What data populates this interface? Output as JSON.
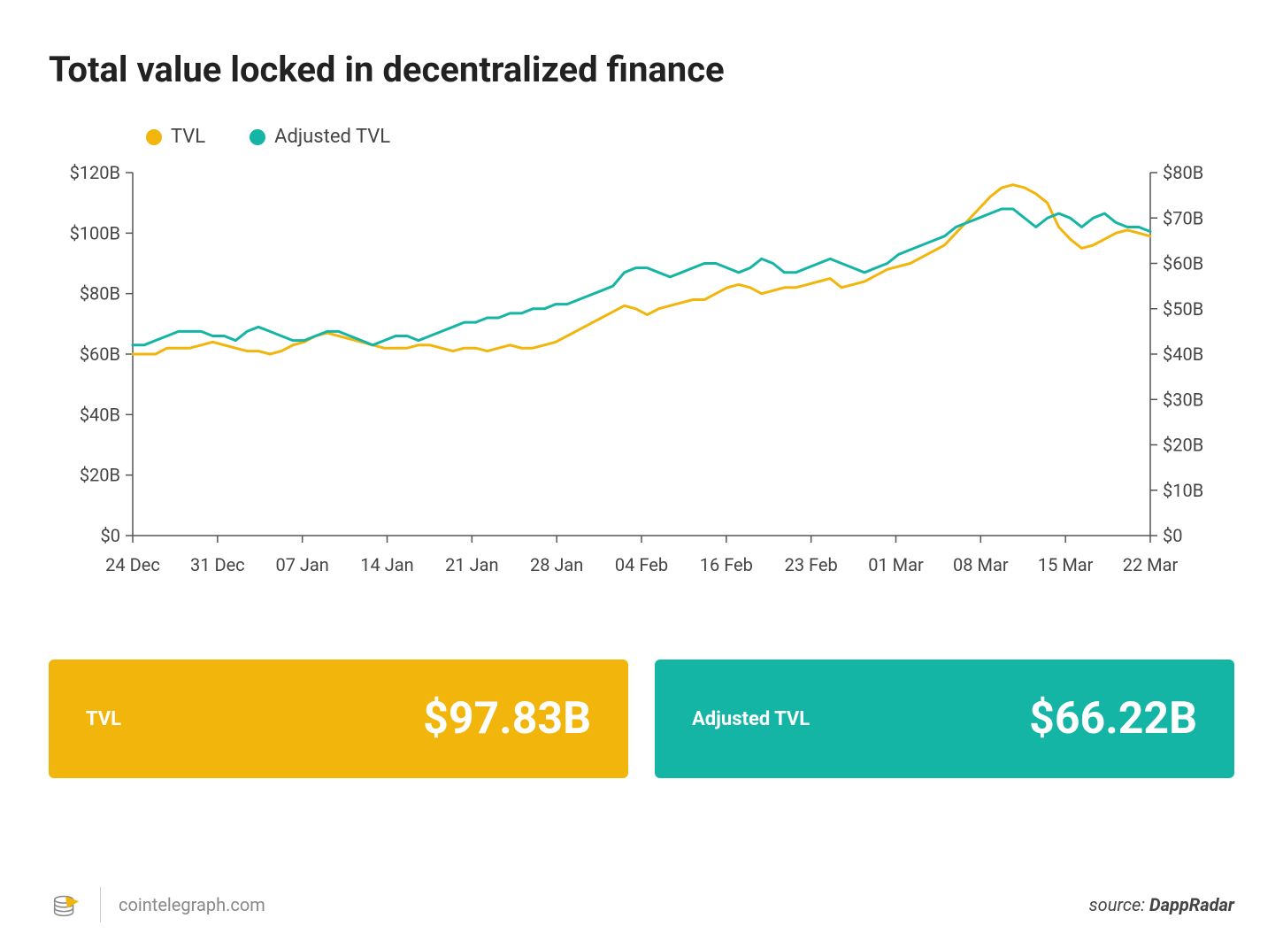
{
  "title": "Total value locked in decentralized finance",
  "chart": {
    "type": "line-dual-axis",
    "background_color": "#ffffff",
    "axis_color": "#555555",
    "tick_color": "#555555",
    "line_width": 3,
    "series": [
      {
        "name": "TVL",
        "color": "#f2b50c",
        "axis": "left",
        "values": [
          60,
          60,
          60,
          62,
          62,
          62,
          63,
          64,
          63,
          62,
          61,
          61,
          60,
          61,
          63,
          64,
          66,
          67,
          66,
          65,
          64,
          63,
          62,
          62,
          62,
          63,
          63,
          62,
          61,
          62,
          62,
          61,
          62,
          63,
          62,
          62,
          63,
          64,
          66,
          68,
          70,
          72,
          74,
          76,
          75,
          73,
          75,
          76,
          77,
          78,
          78,
          80,
          82,
          83,
          82,
          80,
          81,
          82,
          82,
          83,
          84,
          85,
          82,
          83,
          84,
          86,
          88,
          89,
          90,
          92,
          94,
          96,
          100,
          104,
          108,
          112,
          115,
          116,
          115,
          113,
          110,
          102,
          98,
          95,
          96,
          98,
          100,
          101,
          100,
          99
        ]
      },
      {
        "name": "Adjusted TVL",
        "color": "#14b5a5",
        "axis": "right",
        "values": [
          42,
          42,
          43,
          44,
          45,
          45,
          45,
          44,
          44,
          43,
          45,
          46,
          45,
          44,
          43,
          43,
          44,
          45,
          45,
          44,
          43,
          42,
          43,
          44,
          44,
          43,
          44,
          45,
          46,
          47,
          47,
          48,
          48,
          49,
          49,
          50,
          50,
          51,
          51,
          52,
          53,
          54,
          55,
          58,
          59,
          59,
          58,
          57,
          58,
          59,
          60,
          60,
          59,
          58,
          59,
          61,
          60,
          58,
          58,
          59,
          60,
          61,
          60,
          59,
          58,
          59,
          60,
          62,
          63,
          64,
          65,
          66,
          68,
          69,
          70,
          71,
          72,
          72,
          70,
          68,
          70,
          71,
          70,
          68,
          70,
          71,
          69,
          68,
          68,
          67
        ]
      }
    ],
    "x_labels": [
      "24 Dec",
      "31 Dec",
      "07 Jan",
      "14 Jan",
      "21 Jan",
      "28 Jan",
      "04 Feb",
      "16 Feb",
      "23 Feb",
      "01 Mar",
      "08 Mar",
      "15 Mar",
      "22 Mar"
    ],
    "left_axis": {
      "min": 0,
      "max": 120,
      "step": 20,
      "prefix": "$",
      "suffix": "B",
      "ticks": [
        "$0",
        "$20B",
        "$40B",
        "$60B",
        "$80B",
        "$100B",
        "$120B"
      ]
    },
    "right_axis": {
      "min": 0,
      "max": 80,
      "step": 10,
      "prefix": "$",
      "suffix": "B",
      "ticks": [
        "$0",
        "$10B",
        "$20B",
        "$30B",
        "$40B",
        "$50B",
        "$60B",
        "$70B",
        "$80B"
      ]
    },
    "label_fontsize": 20,
    "label_color": "#444444"
  },
  "legend": {
    "items": [
      {
        "label": "TVL",
        "color": "#f2b50c"
      },
      {
        "label": "Adjusted TVL",
        "color": "#14b5a5"
      }
    ]
  },
  "stats": [
    {
      "label": "TVL",
      "value": "$97.83B",
      "bg_color": "#f2b50c"
    },
    {
      "label": "Adjusted TVL",
      "value": "$66.22B",
      "bg_color": "#14b5a5"
    }
  ],
  "footer": {
    "site": "cointelegraph.com",
    "source_prefix": "source: ",
    "source_name": "DappRadar",
    "logo_stroke": "#888888",
    "logo_accent": "#f2b50c"
  }
}
